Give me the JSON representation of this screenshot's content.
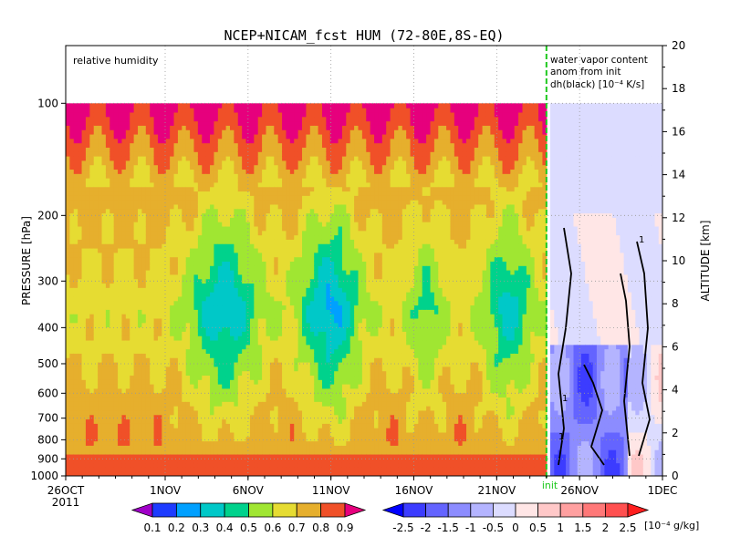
{
  "chart_data": {
    "type": "heatmap",
    "title": "NCEP+NICAM_fcst HUM (72-80E,8S-EQ)",
    "ylabel_left": "PRESSURE [hPa]",
    "ylabel_right": "ALTITUDE [km]",
    "x_ticks": [
      {
        "label": "26OCT",
        "sub": "2011",
        "day": 0
      },
      {
        "label": "1NOV",
        "day": 6
      },
      {
        "label": "6NOV",
        "day": 11
      },
      {
        "label": "11NOV",
        "day": 16
      },
      {
        "label": "16NOV",
        "day": 21
      },
      {
        "label": "21NOV",
        "day": 26
      },
      {
        "label": "26NOV",
        "day": 31
      },
      {
        "label": "1DEC",
        "day": 36
      }
    ],
    "x_range_days": [
      0,
      36
    ],
    "init_day": 29,
    "init_label": "init",
    "y_left_ticks": [
      100,
      200,
      300,
      400,
      500,
      600,
      700,
      800,
      900,
      1000
    ],
    "y_left_range": [
      1000,
      70
    ],
    "y_right_ticks": [
      0,
      2,
      4,
      6,
      8,
      10,
      12,
      14,
      16,
      18,
      20
    ],
    "y_right_range": [
      0,
      20
    ],
    "log_pressure": true,
    "grid": true,
    "panel_left_label": "relative humidity",
    "panel_right_label": [
      "water vapor content",
      "anom from init",
      "dh(black) [10⁻⁴ K/s]"
    ],
    "contour_label": "1",
    "colorbar_humidity": {
      "colors": [
        "#a000c8",
        "#1e3cff",
        "#00a0ff",
        "#00c8c8",
        "#00d28c",
        "#a0e632",
        "#e6dc32",
        "#e6af2d",
        "#f05028",
        "#e6007d"
      ],
      "labels": [
        "0.1",
        "0.2",
        "0.3",
        "0.4",
        "0.5",
        "0.6",
        "0.7",
        "0.8",
        "0.9"
      ]
    },
    "colorbar_anomaly": {
      "colors": [
        "#0000ff",
        "#3c3cff",
        "#6464ff",
        "#8c8cff",
        "#b4b4ff",
        "#dcdcff",
        "#ffe6e6",
        "#ffc8c8",
        "#ffa0a0",
        "#ff7878",
        "#ff5050",
        "#ff1e1e"
      ],
      "labels": [
        "-2.5",
        "-2",
        "-1.5",
        "-1",
        "-0.5",
        "0",
        "0.5",
        "1",
        "1.5",
        "2",
        "2.5"
      ],
      "unit": "[10⁻⁴ g/kg]"
    }
  }
}
